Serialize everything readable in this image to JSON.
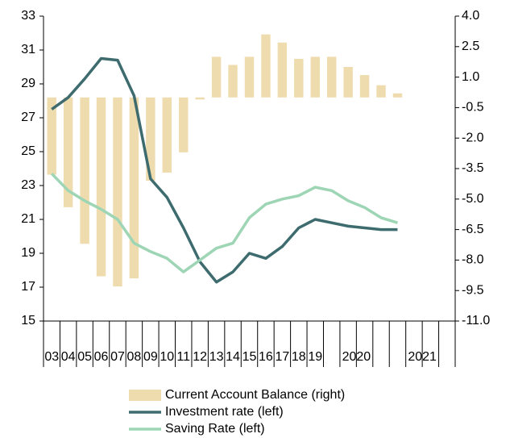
{
  "chart_data": {
    "type": "bar_line_dual",
    "categories": [
      "03",
      "04",
      "05",
      "06",
      "07",
      "08",
      "09",
      "10",
      "11",
      "12",
      "13",
      "14",
      "15",
      "16",
      "17",
      "18",
      "19",
      "2020",
      null,
      null,
      null,
      "2021",
      null,
      null,
      null
    ],
    "series": [
      {
        "name": "Current Account Balance (right)",
        "type": "bar",
        "axis": "y2",
        "color": "#efdcae",
        "values": [
          -3.8,
          -5.4,
          -7.2,
          -8.8,
          -9.3,
          -8.9,
          -4.1,
          -3.7,
          -2.7,
          -0.1,
          2.0,
          1.6,
          2.0,
          3.1,
          2.7,
          1.9,
          2.0,
          2.0,
          1.5,
          1.1,
          0.6,
          0.2,
          null,
          null,
          null
        ]
      },
      {
        "name": "Investment rate (left)",
        "type": "line",
        "color": "#3d6b6e",
        "values": [
          27.5,
          28.2,
          29.3,
          30.5,
          30.4,
          28.3,
          23.4,
          22.3,
          20.5,
          18.5,
          17.3,
          17.9,
          19.0,
          18.7,
          19.4,
          20.5,
          21.0,
          20.8,
          20.6,
          20.5,
          20.4,
          20.4,
          null,
          null,
          null
        ]
      },
      {
        "name": "Saving Rate (left)",
        "type": "line",
        "color": "#9dd5b5",
        "values": [
          23.7,
          22.7,
          22.1,
          21.6,
          21.0,
          19.6,
          19.1,
          18.7,
          17.9,
          18.6,
          19.3,
          19.6,
          21.1,
          21.9,
          22.2,
          22.4,
          22.9,
          22.7,
          22.1,
          21.7,
          21.1,
          20.8,
          null,
          null,
          null
        ]
      }
    ],
    "ylim": [
      15,
      33
    ],
    "yticks": [
      15,
      17,
      19,
      21,
      23,
      25,
      27,
      29,
      31,
      33
    ],
    "y2lim": [
      -11,
      4
    ],
    "y2ticks": [
      {
        "value": -11,
        "label": "-11.0"
      },
      -9.5,
      {
        "value": -8,
        "label": "-8.0"
      },
      -6.5,
      {
        "value": -5,
        "label": "-5.0"
      },
      -3.5,
      {
        "value": -2,
        "label": "-2.0"
      },
      -0.5,
      {
        "value": 1,
        "label": "1.0"
      },
      2.5,
      {
        "value": 4,
        "label": "4.0"
      }
    ],
    "legend": "bottom"
  }
}
